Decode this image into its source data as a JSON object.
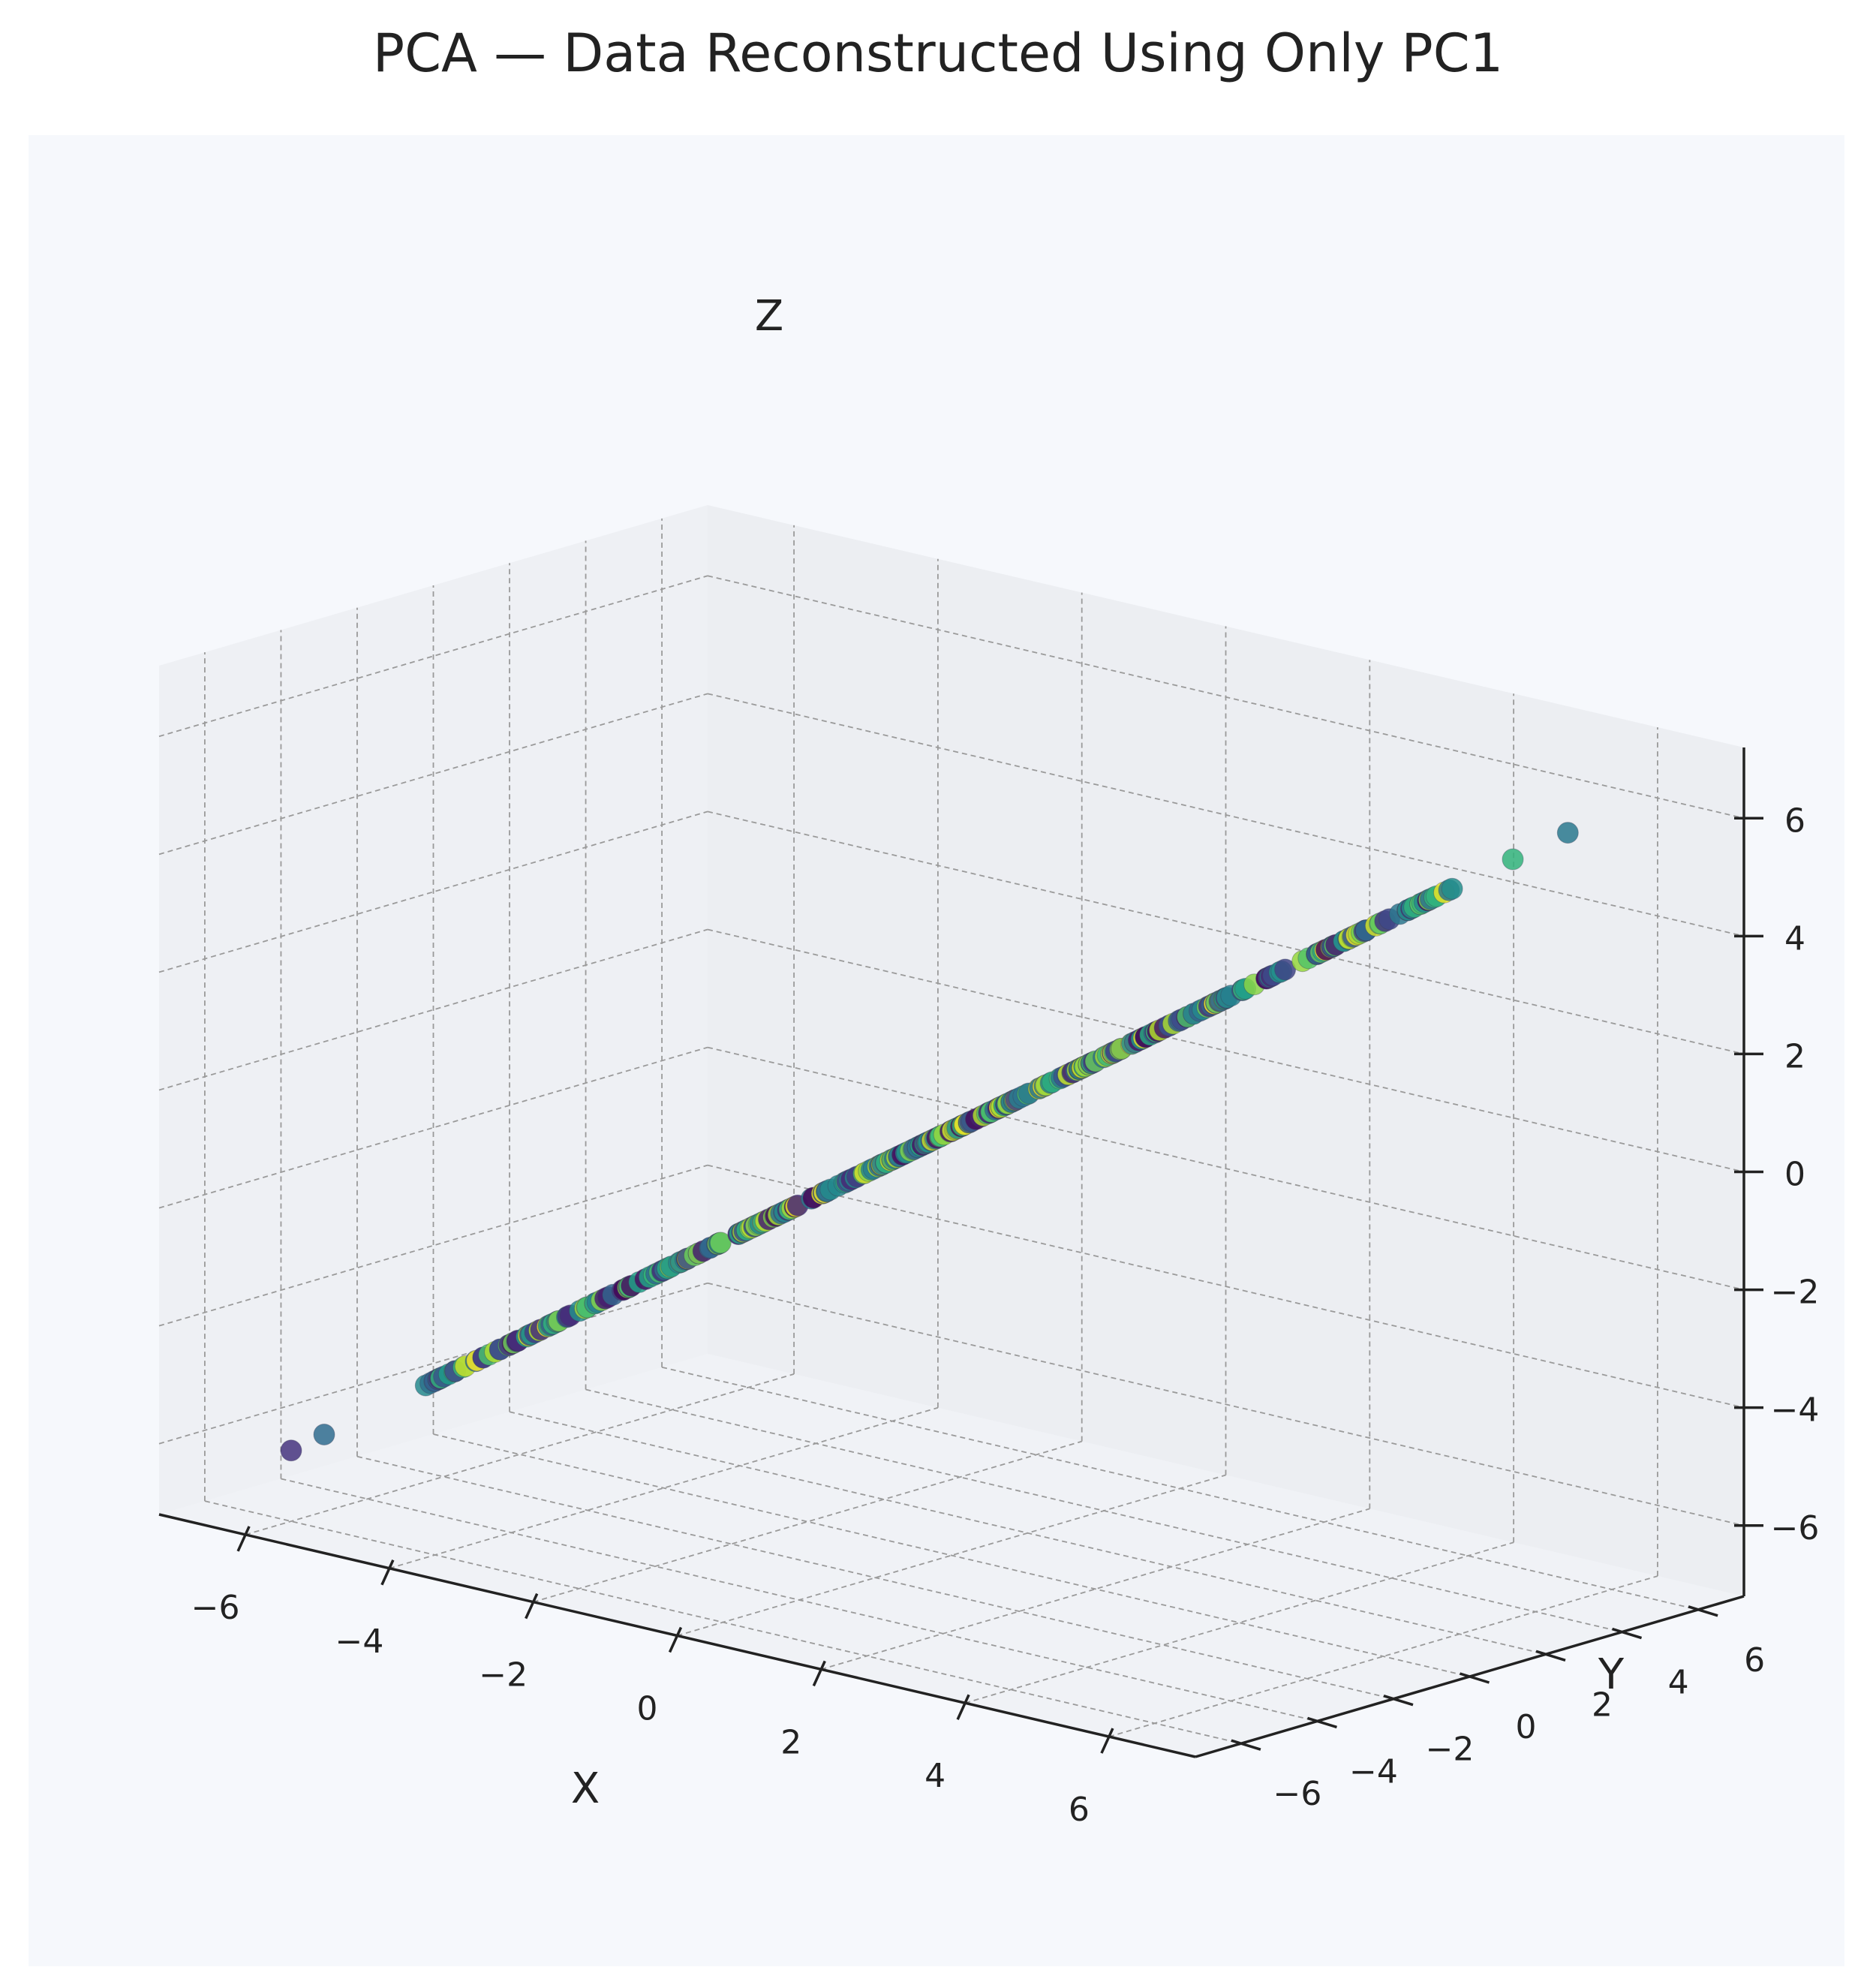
{
  "chart_data": {
    "type": "scatter",
    "projection": "3d",
    "title": "PCA — Data Reconstructed Using Only PC1",
    "xlabel": "X",
    "ylabel": "Y",
    "zlabel": "Z",
    "xlim": [
      -7.2,
      7.2
    ],
    "ylim": [
      -7.2,
      7.2
    ],
    "zlim": [
      -7.2,
      7.2
    ],
    "x_ticks": [
      -6,
      -4,
      -2,
      0,
      2,
      4,
      6
    ],
    "y_ticks": [
      -6,
      -4,
      -2,
      0,
      2,
      4,
      6
    ],
    "z_ticks": [
      -6,
      -4,
      -2,
      0,
      2,
      4,
      6
    ],
    "x_tick_labels": [
      "−6",
      "−4",
      "−2",
      "0",
      "2",
      "4",
      "6"
    ],
    "y_tick_labels": [
      "−6",
      "−4",
      "−2",
      "0",
      "2",
      "4",
      "6"
    ],
    "z_tick_labels": [
      "−6",
      "−4",
      "−2",
      "0",
      "2",
      "4",
      "6"
    ],
    "grid": true,
    "colormap": "viridis",
    "pane_color": "#ebedf1",
    "background_color": "#f6f8fc",
    "points_line": {
      "start": [
        -4.8,
        -4.8,
        -4.8
      ],
      "end": [
        4.6,
        4.6,
        4.6
      ],
      "count": 420
    },
    "outliers": [
      {
        "x": -6.0,
        "y": -6.0,
        "z": -6.0,
        "c": 0.15
      },
      {
        "x": -5.7,
        "y": -5.7,
        "z": -5.7,
        "c": 0.35
      },
      {
        "x": 5.1,
        "y": 5.1,
        "z": 5.1,
        "c": 0.65
      },
      {
        "x": 5.6,
        "y": 5.6,
        "z": 5.6,
        "c": 0.4
      }
    ]
  }
}
